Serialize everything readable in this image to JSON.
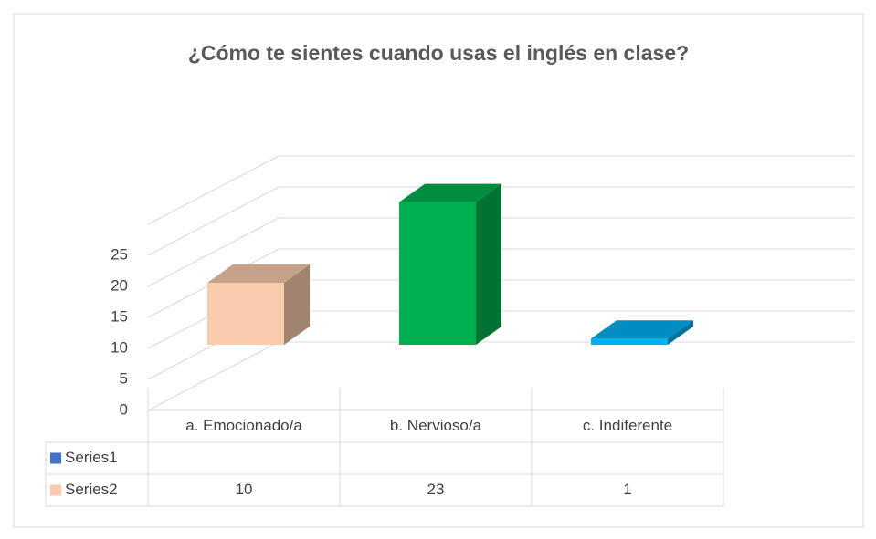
{
  "chart_data": {
    "type": "bar3d",
    "title": "¿Cómo te sientes cuando usas el inglés en clase?",
    "categories": [
      "a. Emocionado/a",
      "b. Nervioso/a",
      "c. Indiferente"
    ],
    "series": [
      {
        "name": "Series1",
        "color": "#4472c4",
        "values": [
          null,
          null,
          null
        ]
      },
      {
        "name": "Series2",
        "color": "#f8cbad",
        "values": [
          10,
          23,
          1
        ],
        "colors": [
          "#f8cbad",
          "#00b050",
          "#00b0f0"
        ]
      }
    ],
    "ylim": [
      0,
      30
    ],
    "yticks": [
      0,
      5,
      10,
      15,
      20,
      25
    ],
    "grid": true,
    "data_table": true
  }
}
